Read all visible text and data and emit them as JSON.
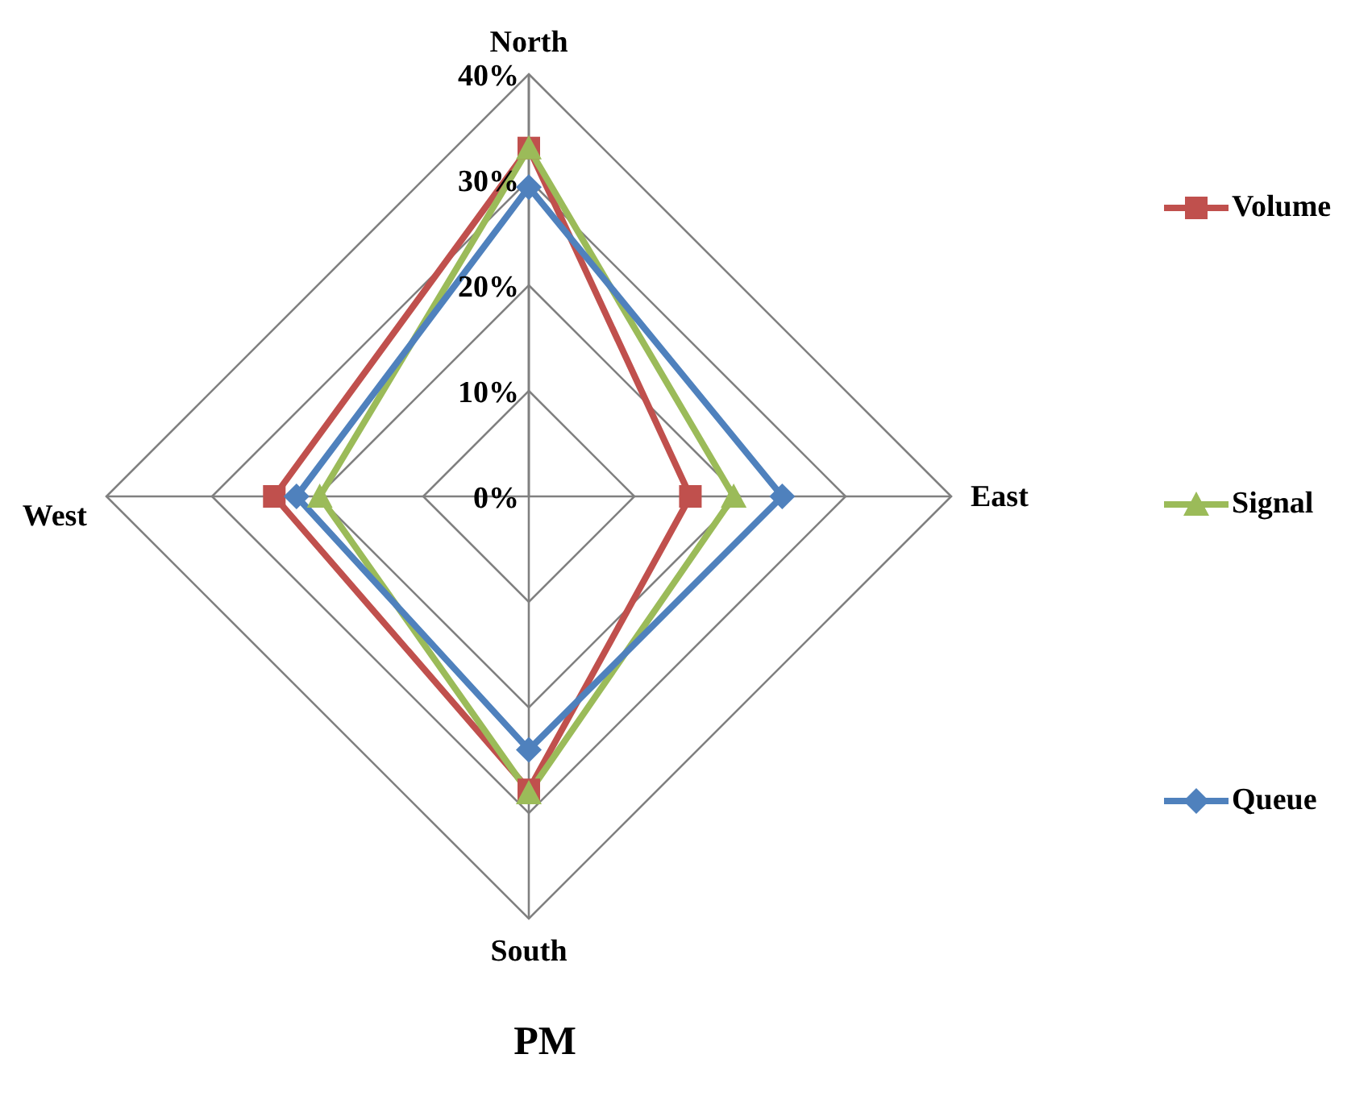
{
  "chart_data": {
    "type": "radar",
    "title": "PM",
    "categories": [
      "North",
      "East",
      "South",
      "West"
    ],
    "series": [
      {
        "name": "Volume",
        "color": "#c0504d",
        "marker": "square",
        "values": [
          33,
          15.3,
          27.8,
          24.1
        ]
      },
      {
        "name": "Signal",
        "color": "#9bbb59",
        "marker": "triangle",
        "values": [
          33,
          19.4,
          28.1,
          19.8
        ]
      },
      {
        "name": "Queue",
        "color": "#4f81bd",
        "marker": "diamond",
        "values": [
          29.3,
          24,
          24,
          22
        ]
      }
    ],
    "ylim": [
      0,
      40
    ],
    "yticks": [
      {
        "value": 0,
        "label": "0%"
      },
      {
        "value": 10,
        "label": "10%"
      },
      {
        "value": 20,
        "label": "20%"
      },
      {
        "value": 30,
        "label": "30%"
      },
      {
        "value": 40,
        "label": "40%"
      }
    ],
    "grid": true,
    "legend": "right"
  }
}
